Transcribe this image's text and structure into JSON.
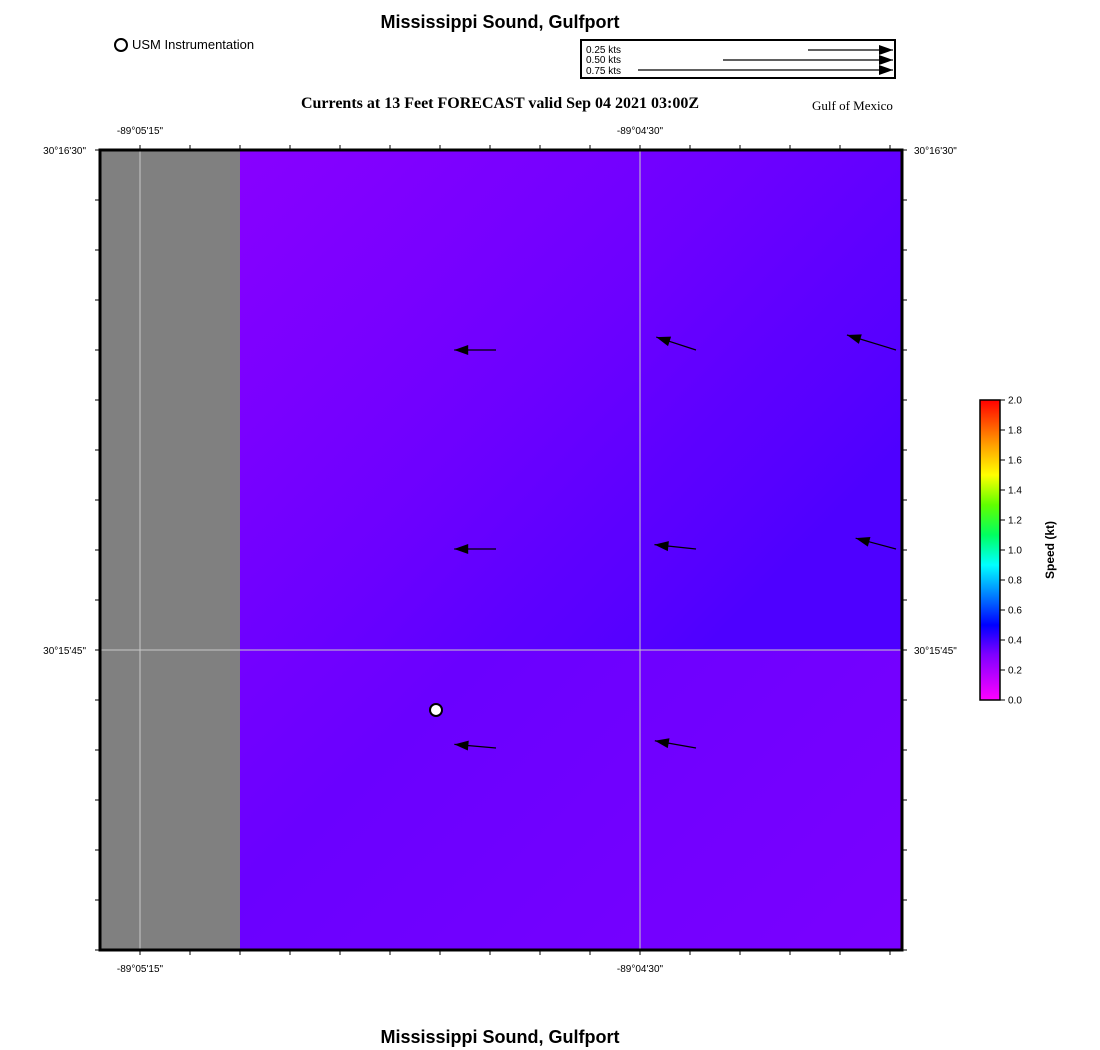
{
  "header": {
    "title": "Mississippi Sound, Gulfport",
    "subtitle": "Currents at 13 Feet FORECAST valid Sep 04 2021 03:00Z",
    "region": "Gulf of Mexico",
    "instrument_legend": "USM Instrumentation"
  },
  "footer": {
    "title": "Mississippi Sound, Gulfport"
  },
  "scale_legend": {
    "labels": [
      "0.25 kts",
      "0.50 kts",
      "0.75 kts"
    ],
    "values_kts": [
      0.25,
      0.5,
      0.75
    ]
  },
  "axes": {
    "lon_labels": [
      "-89°05'15\"",
      "-89°04'30\""
    ],
    "lat_labels": [
      "30°16'30\"",
      "30°15'45\""
    ]
  },
  "colorbar": {
    "label": "Speed (kt)",
    "ticks": [
      "0.0",
      "0.2",
      "0.4",
      "0.6",
      "0.8",
      "1.0",
      "1.2",
      "1.4",
      "1.6",
      "1.8",
      "2.0"
    ],
    "colors": [
      "#ff00ff",
      "#8000ff",
      "#0000ff",
      "#00a0ff",
      "#00ffff",
      "#00ff00",
      "#a0ff00",
      "#ffff00",
      "#ffa000",
      "#ff5000",
      "#ff0000"
    ]
  },
  "map": {
    "land_color": "#808080",
    "water_colors": [
      "#8a00ff",
      "#5a00ff",
      "#7000ff"
    ],
    "instrument_station": {
      "name": "USM Instrumentation"
    },
    "current_vectors": [
      {
        "row": 1,
        "col": 1,
        "speed_kts": 0.22,
        "dir_deg": 270
      },
      {
        "row": 1,
        "col": 2,
        "speed_kts": 0.22,
        "dir_deg": 288
      },
      {
        "row": 1,
        "col": 3,
        "speed_kts": 0.27,
        "dir_deg": 287
      },
      {
        "row": 2,
        "col": 1,
        "speed_kts": 0.22,
        "dir_deg": 270
      },
      {
        "row": 2,
        "col": 2,
        "speed_kts": 0.22,
        "dir_deg": 276
      },
      {
        "row": 2,
        "col": 3,
        "speed_kts": 0.22,
        "dir_deg": 285
      },
      {
        "row": 3,
        "col": 1,
        "speed_kts": 0.22,
        "dir_deg": 275
      },
      {
        "row": 3,
        "col": 2,
        "speed_kts": 0.22,
        "dir_deg": 280
      }
    ]
  }
}
